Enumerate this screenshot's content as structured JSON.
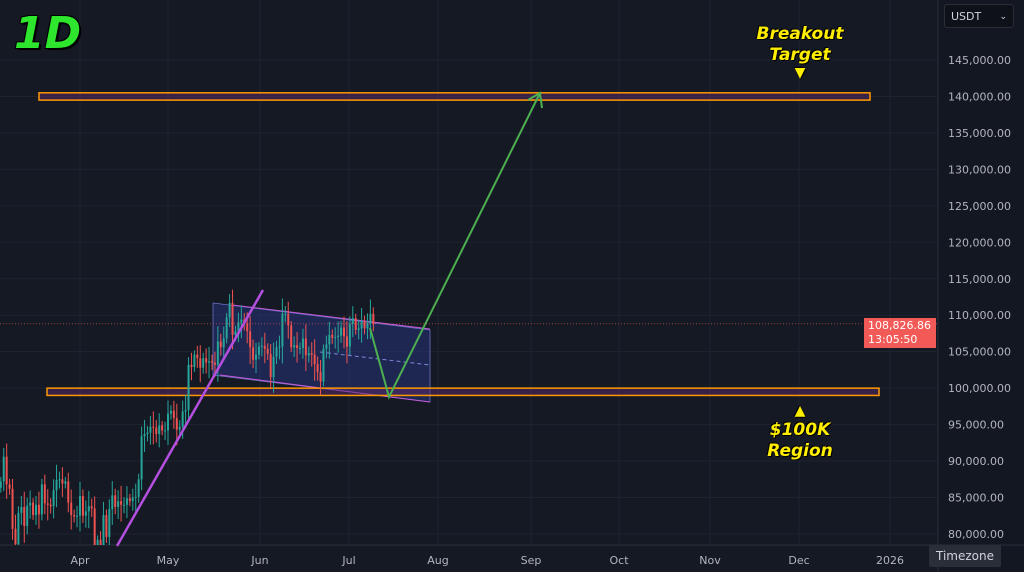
{
  "timeframe_label": "1D",
  "currency_selector": {
    "value": "USDT"
  },
  "timezone_button": "Timezone",
  "last_price": {
    "price": "108,826.86",
    "countdown": "13:05:50",
    "color": "#f15a57"
  },
  "annotations": {
    "breakout_target": [
      "Breakout",
      "Target"
    ],
    "support_region": [
      "$100K",
      "Region"
    ]
  },
  "colors": {
    "up": "#26a69a",
    "down": "#ef5350",
    "zone": "#ff9800",
    "trendline": "#b44fe0",
    "projection": "#4caf50",
    "channel": "#2b3a8a",
    "label": "#ffee00"
  },
  "chart_data": {
    "type": "candlestick",
    "y_axis": {
      "min": 80000,
      "max": 145000,
      "step": 5000,
      "tick_labels": [
        "145,000.00",
        "140,000.00",
        "135,000.00",
        "130,000.00",
        "125,000.00",
        "120,000.00",
        "115,000.00",
        "110,000.00",
        "105,000.00",
        "100,000.00",
        "95,000.00",
        "90,000.00",
        "85,000.00",
        "80,000.00"
      ]
    },
    "x_axis": {
      "tick_labels": [
        "Apr",
        "May",
        "Jun",
        "Jul",
        "Aug",
        "Sep",
        "Oct",
        "Nov",
        "Dec",
        "2026"
      ]
    },
    "grid": true,
    "start_date": "2025-03-05",
    "daily_close_thousands": [
      87.2,
      90.6,
      86.8,
      86.2,
      80.7,
      78.6,
      82.9,
      83.7,
      81.1,
      83.9,
      84.3,
      82.6,
      84.0,
      82.7,
      86.8,
      84.2,
      84.0,
      83.8,
      86.0,
      87.4,
      87.5,
      86.9,
      87.2,
      84.3,
      82.6,
      82.4,
      82.5,
      85.2,
      82.5,
      83.1,
      83.8,
      83.5,
      78.4,
      79.2,
      76.3,
      82.6,
      79.6,
      83.4,
      85.3,
      83.7,
      84.5,
      84.0,
      84.0,
      84.9,
      84.5,
      85.0,
      85.1,
      87.5,
      93.4,
      93.7,
      93.9,
      94.7,
      94.6,
      93.7,
      94.9,
      94.2,
      94.2,
      96.5,
      96.9,
      95.9,
      94.3,
      94.7,
      96.8,
      97.0,
      103.2,
      102.9,
      104.6,
      104.1,
      102.8,
      104.1,
      103.5,
      103.7,
      103.5,
      103.2,
      106.4,
      105.6,
      106.8,
      109.7,
      111.7,
      107.3,
      107.8,
      109.0,
      109.4,
      108.9,
      107.8,
      105.6,
      103.9,
      104.6,
      105.7,
      105.8,
      105.4,
      104.7,
      101.5,
      104.3,
      105.6,
      105.7,
      110.2,
      110.2,
      108.6,
      105.6,
      105.9,
      105.5,
      105.5,
      106.8,
      104.5,
      104.8,
      104.6,
      103.3,
      102.2,
      100.9,
      105.4,
      106.0,
      107.3,
      106.9,
      107.0,
      107.2,
      108.3,
      107.1,
      105.7,
      108.8,
      109.6,
      108.0,
      108.2,
      109.2,
      108.2,
      108.9,
      110.2,
      108.8
    ],
    "zones": [
      {
        "label": "Breakout Target",
        "low": 139500,
        "high": 140500
      },
      {
        "label": "$100K Region",
        "low": 99000,
        "high": 100000
      }
    ]
  }
}
